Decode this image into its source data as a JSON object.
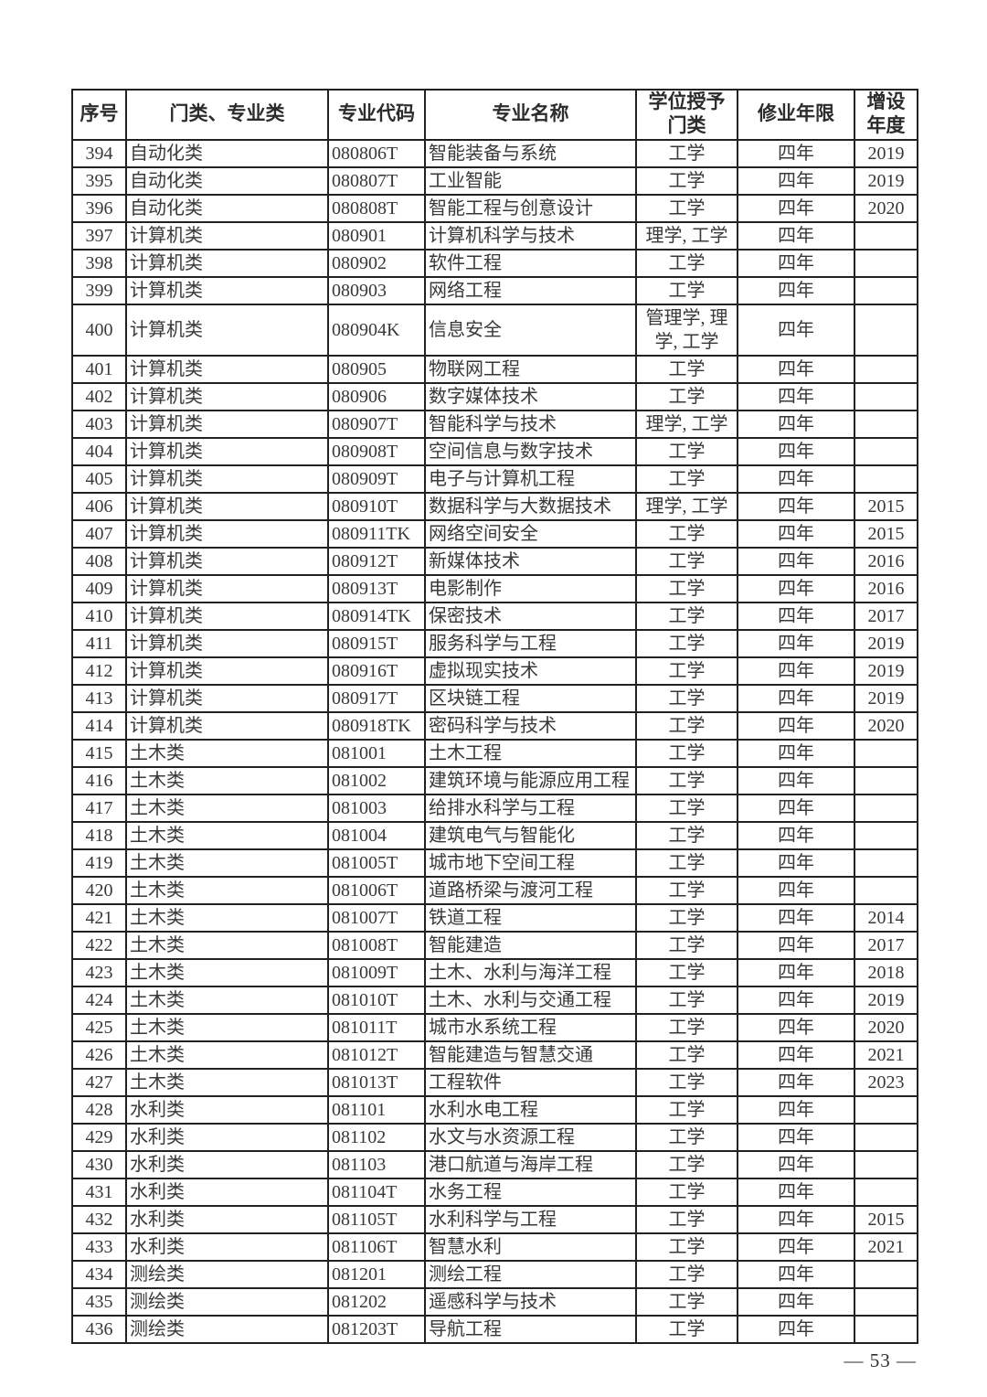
{
  "page": {
    "number_label": "— 53 —"
  },
  "table": {
    "column_keys": [
      "index",
      "category",
      "code",
      "name",
      "degree",
      "duration",
      "year_added"
    ],
    "headers": [
      "序号",
      "门类、专业类",
      "专业代码",
      "专业名称",
      "学位授予\n门类",
      "修业年限",
      "增设\n年度"
    ],
    "rows": [
      [
        "394",
        "自动化类",
        "080806T",
        "智能装备与系统",
        "工学",
        "四年",
        "2019"
      ],
      [
        "395",
        "自动化类",
        "080807T",
        "工业智能",
        "工学",
        "四年",
        "2019"
      ],
      [
        "396",
        "自动化类",
        "080808T",
        "智能工程与创意设计",
        "工学",
        "四年",
        "2020"
      ],
      [
        "397",
        "计算机类",
        "080901",
        "计算机科学与技术",
        "理学, 工学",
        "四年",
        ""
      ],
      [
        "398",
        "计算机类",
        "080902",
        "软件工程",
        "工学",
        "四年",
        ""
      ],
      [
        "399",
        "计算机类",
        "080903",
        "网络工程",
        "工学",
        "四年",
        ""
      ],
      [
        "400",
        "计算机类",
        "080904K",
        "信息安全",
        "管理学, 理学, 工学",
        "四年",
        ""
      ],
      [
        "401",
        "计算机类",
        "080905",
        "物联网工程",
        "工学",
        "四年",
        ""
      ],
      [
        "402",
        "计算机类",
        "080906",
        "数字媒体技术",
        "工学",
        "四年",
        ""
      ],
      [
        "403",
        "计算机类",
        "080907T",
        "智能科学与技术",
        "理学, 工学",
        "四年",
        ""
      ],
      [
        "404",
        "计算机类",
        "080908T",
        "空间信息与数字技术",
        "工学",
        "四年",
        ""
      ],
      [
        "405",
        "计算机类",
        "080909T",
        "电子与计算机工程",
        "工学",
        "四年",
        ""
      ],
      [
        "406",
        "计算机类",
        "080910T",
        "数据科学与大数据技术",
        "理学, 工学",
        "四年",
        "2015"
      ],
      [
        "407",
        "计算机类",
        "080911TK",
        "网络空间安全",
        "工学",
        "四年",
        "2015"
      ],
      [
        "408",
        "计算机类",
        "080912T",
        "新媒体技术",
        "工学",
        "四年",
        "2016"
      ],
      [
        "409",
        "计算机类",
        "080913T",
        "电影制作",
        "工学",
        "四年",
        "2016"
      ],
      [
        "410",
        "计算机类",
        "080914TK",
        "保密技术",
        "工学",
        "四年",
        "2017"
      ],
      [
        "411",
        "计算机类",
        "080915T",
        "服务科学与工程",
        "工学",
        "四年",
        "2019"
      ],
      [
        "412",
        "计算机类",
        "080916T",
        "虚拟现实技术",
        "工学",
        "四年",
        "2019"
      ],
      [
        "413",
        "计算机类",
        "080917T",
        "区块链工程",
        "工学",
        "四年",
        "2019"
      ],
      [
        "414",
        "计算机类",
        "080918TK",
        "密码科学与技术",
        "工学",
        "四年",
        "2020"
      ],
      [
        "415",
        "土木类",
        "081001",
        "土木工程",
        "工学",
        "四年",
        ""
      ],
      [
        "416",
        "土木类",
        "081002",
        "建筑环境与能源应用工程",
        "工学",
        "四年",
        ""
      ],
      [
        "417",
        "土木类",
        "081003",
        "给排水科学与工程",
        "工学",
        "四年",
        ""
      ],
      [
        "418",
        "土木类",
        "081004",
        "建筑电气与智能化",
        "工学",
        "四年",
        ""
      ],
      [
        "419",
        "土木类",
        "081005T",
        "城市地下空间工程",
        "工学",
        "四年",
        ""
      ],
      [
        "420",
        "土木类",
        "081006T",
        "道路桥梁与渡河工程",
        "工学",
        "四年",
        ""
      ],
      [
        "421",
        "土木类",
        "081007T",
        "铁道工程",
        "工学",
        "四年",
        "2014"
      ],
      [
        "422",
        "土木类",
        "081008T",
        "智能建造",
        "工学",
        "四年",
        "2017"
      ],
      [
        "423",
        "土木类",
        "081009T",
        "土木、水利与海洋工程",
        "工学",
        "四年",
        "2018"
      ],
      [
        "424",
        "土木类",
        "081010T",
        "土木、水利与交通工程",
        "工学",
        "四年",
        "2019"
      ],
      [
        "425",
        "土木类",
        "081011T",
        "城市水系统工程",
        "工学",
        "四年",
        "2020"
      ],
      [
        "426",
        "土木类",
        "081012T",
        "智能建造与智慧交通",
        "工学",
        "四年",
        "2021"
      ],
      [
        "427",
        "土木类",
        "081013T",
        "工程软件",
        "工学",
        "四年",
        "2023"
      ],
      [
        "428",
        "水利类",
        "081101",
        "水利水电工程",
        "工学",
        "四年",
        ""
      ],
      [
        "429",
        "水利类",
        "081102",
        "水文与水资源工程",
        "工学",
        "四年",
        ""
      ],
      [
        "430",
        "水利类",
        "081103",
        "港口航道与海岸工程",
        "工学",
        "四年",
        ""
      ],
      [
        "431",
        "水利类",
        "081104T",
        "水务工程",
        "工学",
        "四年",
        ""
      ],
      [
        "432",
        "水利类",
        "081105T",
        "水利科学与工程",
        "工学",
        "四年",
        "2015"
      ],
      [
        "433",
        "水利类",
        "081106T",
        "智慧水利",
        "工学",
        "四年",
        "2021"
      ],
      [
        "434",
        "测绘类",
        "081201",
        "测绘工程",
        "工学",
        "四年",
        ""
      ],
      [
        "435",
        "测绘类",
        "081202",
        "遥感科学与技术",
        "工学",
        "四年",
        ""
      ],
      [
        "436",
        "测绘类",
        "081203T",
        "导航工程",
        "工学",
        "四年",
        ""
      ]
    ]
  }
}
